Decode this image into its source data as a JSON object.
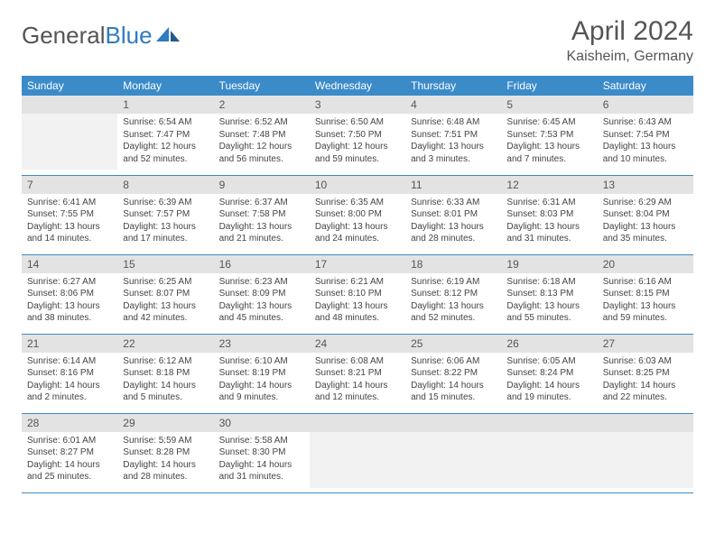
{
  "brand": {
    "part1": "General",
    "part2": "Blue"
  },
  "title": "April 2024",
  "location": "Kaisheim, Germany",
  "colors": {
    "header_bg": "#3b8bc9",
    "header_text": "#ffffff",
    "daynum_bg": "#e3e3e3",
    "empty_body_bg": "#f2f2f2",
    "text": "#444444",
    "row_border": "#3b8bc9",
    "brand_gray": "#555555",
    "brand_blue": "#2f7bbf"
  },
  "day_names": [
    "Sunday",
    "Monday",
    "Tuesday",
    "Wednesday",
    "Thursday",
    "Friday",
    "Saturday"
  ],
  "weeks": [
    [
      null,
      {
        "n": "1",
        "sr": "6:54 AM",
        "ss": "7:47 PM",
        "dl": "12 hours and 52 minutes."
      },
      {
        "n": "2",
        "sr": "6:52 AM",
        "ss": "7:48 PM",
        "dl": "12 hours and 56 minutes."
      },
      {
        "n": "3",
        "sr": "6:50 AM",
        "ss": "7:50 PM",
        "dl": "12 hours and 59 minutes."
      },
      {
        "n": "4",
        "sr": "6:48 AM",
        "ss": "7:51 PM",
        "dl": "13 hours and 3 minutes."
      },
      {
        "n": "5",
        "sr": "6:45 AM",
        "ss": "7:53 PM",
        "dl": "13 hours and 7 minutes."
      },
      {
        "n": "6",
        "sr": "6:43 AM",
        "ss": "7:54 PM",
        "dl": "13 hours and 10 minutes."
      }
    ],
    [
      {
        "n": "7",
        "sr": "6:41 AM",
        "ss": "7:55 PM",
        "dl": "13 hours and 14 minutes."
      },
      {
        "n": "8",
        "sr": "6:39 AM",
        "ss": "7:57 PM",
        "dl": "13 hours and 17 minutes."
      },
      {
        "n": "9",
        "sr": "6:37 AM",
        "ss": "7:58 PM",
        "dl": "13 hours and 21 minutes."
      },
      {
        "n": "10",
        "sr": "6:35 AM",
        "ss": "8:00 PM",
        "dl": "13 hours and 24 minutes."
      },
      {
        "n": "11",
        "sr": "6:33 AM",
        "ss": "8:01 PM",
        "dl": "13 hours and 28 minutes."
      },
      {
        "n": "12",
        "sr": "6:31 AM",
        "ss": "8:03 PM",
        "dl": "13 hours and 31 minutes."
      },
      {
        "n": "13",
        "sr": "6:29 AM",
        "ss": "8:04 PM",
        "dl": "13 hours and 35 minutes."
      }
    ],
    [
      {
        "n": "14",
        "sr": "6:27 AM",
        "ss": "8:06 PM",
        "dl": "13 hours and 38 minutes."
      },
      {
        "n": "15",
        "sr": "6:25 AM",
        "ss": "8:07 PM",
        "dl": "13 hours and 42 minutes."
      },
      {
        "n": "16",
        "sr": "6:23 AM",
        "ss": "8:09 PM",
        "dl": "13 hours and 45 minutes."
      },
      {
        "n": "17",
        "sr": "6:21 AM",
        "ss": "8:10 PM",
        "dl": "13 hours and 48 minutes."
      },
      {
        "n": "18",
        "sr": "6:19 AM",
        "ss": "8:12 PM",
        "dl": "13 hours and 52 minutes."
      },
      {
        "n": "19",
        "sr": "6:18 AM",
        "ss": "8:13 PM",
        "dl": "13 hours and 55 minutes."
      },
      {
        "n": "20",
        "sr": "6:16 AM",
        "ss": "8:15 PM",
        "dl": "13 hours and 59 minutes."
      }
    ],
    [
      {
        "n": "21",
        "sr": "6:14 AM",
        "ss": "8:16 PM",
        "dl": "14 hours and 2 minutes."
      },
      {
        "n": "22",
        "sr": "6:12 AM",
        "ss": "8:18 PM",
        "dl": "14 hours and 5 minutes."
      },
      {
        "n": "23",
        "sr": "6:10 AM",
        "ss": "8:19 PM",
        "dl": "14 hours and 9 minutes."
      },
      {
        "n": "24",
        "sr": "6:08 AM",
        "ss": "8:21 PM",
        "dl": "14 hours and 12 minutes."
      },
      {
        "n": "25",
        "sr": "6:06 AM",
        "ss": "8:22 PM",
        "dl": "14 hours and 15 minutes."
      },
      {
        "n": "26",
        "sr": "6:05 AM",
        "ss": "8:24 PM",
        "dl": "14 hours and 19 minutes."
      },
      {
        "n": "27",
        "sr": "6:03 AM",
        "ss": "8:25 PM",
        "dl": "14 hours and 22 minutes."
      }
    ],
    [
      {
        "n": "28",
        "sr": "6:01 AM",
        "ss": "8:27 PM",
        "dl": "14 hours and 25 minutes."
      },
      {
        "n": "29",
        "sr": "5:59 AM",
        "ss": "8:28 PM",
        "dl": "14 hours and 28 minutes."
      },
      {
        "n": "30",
        "sr": "5:58 AM",
        "ss": "8:30 PM",
        "dl": "14 hours and 31 minutes."
      },
      null,
      null,
      null,
      null
    ]
  ],
  "labels": {
    "sunrise": "Sunrise: ",
    "sunset": "Sunset: ",
    "daylight": "Daylight: "
  }
}
